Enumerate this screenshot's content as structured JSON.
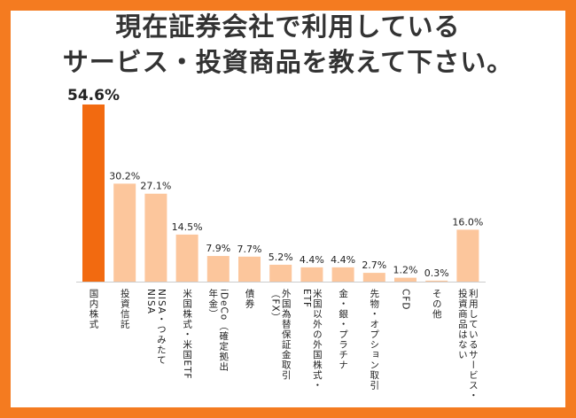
{
  "title_line1": "現在証券会社で利用している",
  "title_line2": "サービス・投資商品を教えて下さい。",
  "colors": {
    "frame": "#f47b20",
    "highlight": "#f26a10",
    "bar": "#fcc69c",
    "axis": "#cccccc"
  },
  "chart_data": {
    "type": "bar",
    "title": "現在証券会社で利用しているサービス・投資商品を教えて下さい。",
    "xlabel": "",
    "ylabel": "",
    "ylim": [
      0,
      54.6
    ],
    "grid": false,
    "legend": "none",
    "highlight_index": 0,
    "categories": [
      [
        "国内株式"
      ],
      [
        "投資信託"
      ],
      [
        "NISA・つみたて",
        "NISA"
      ],
      [
        "米国株式・米国ETF"
      ],
      [
        "iDeCo（確定拠出",
        "年金）"
      ],
      [
        "債券"
      ],
      [
        "外国為替保証金取引",
        "（FX）"
      ],
      [
        "米国以外の外国株式・",
        "ETF"
      ],
      [
        "金・銀・プラチナ"
      ],
      [
        "先物・オプション取引"
      ],
      [
        "CFD"
      ],
      [
        "その他"
      ],
      [
        "利用しているサービス・",
        "投資商品はない"
      ]
    ],
    "values": [
      54.6,
      30.2,
      27.1,
      14.5,
      7.9,
      7.7,
      5.2,
      4.4,
      4.4,
      2.7,
      1.2,
      0.3,
      16.0
    ],
    "labels": [
      "54.6%",
      "30.2%",
      "27.1%",
      "14.5%",
      "7.9%",
      "7.7%",
      "5.2%",
      "4.4%",
      "4.4%",
      "2.7%",
      "1.2%",
      "0.3%",
      "16.0%"
    ]
  }
}
